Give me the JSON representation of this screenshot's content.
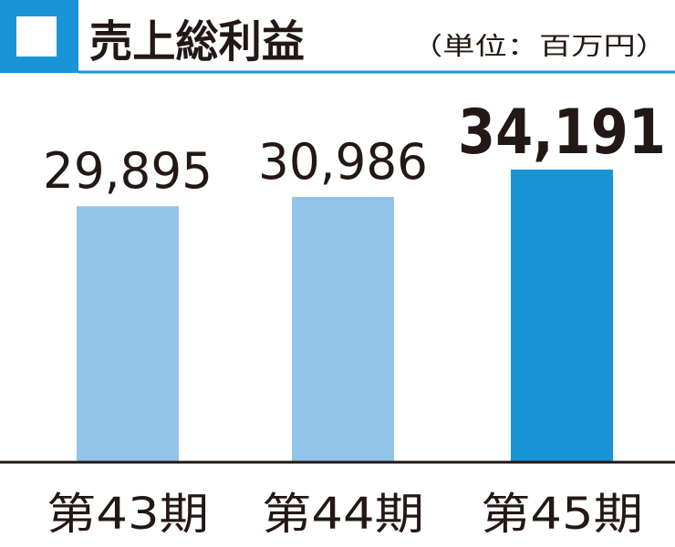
{
  "chart_data": {
    "type": "bar",
    "title": "売上総利益",
    "unit_note": "（単位：百万円）",
    "categories": [
      "第43期",
      "第44期",
      "第45期"
    ],
    "values": [
      29895,
      30986,
      34191
    ],
    "value_labels": [
      "29,895",
      "30,986",
      "34,191"
    ],
    "highlight_index": 2,
    "ylim": [
      0,
      34191
    ],
    "grid": false,
    "colors": {
      "accent": "#1b94d7",
      "bar": "#92c3e8",
      "bar_highlight": "#1b94d7",
      "axis": "#231815",
      "text": "#231815"
    }
  }
}
